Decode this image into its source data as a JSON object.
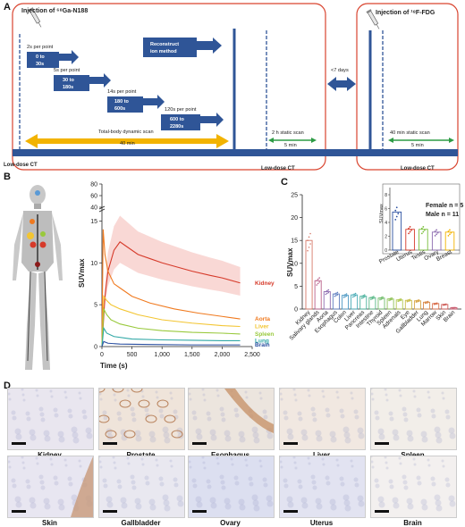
{
  "panel_labels": {
    "a": "A",
    "b": "B",
    "c": "C",
    "d": "D"
  },
  "timeline": {
    "inj1": "Injection of ⁶⁸Ga-N188",
    "inj2": "Injection of ¹⁸F-FDG",
    "recon1": "Reconstruct",
    "recon2": "ion method",
    "s1a": "2s per point",
    "s1b": "0 to",
    "s1c": "30s",
    "s2a": "5s per point",
    "s2b": "30 to",
    "s2c": "180s",
    "s3a": "14s per point",
    "s3b": "180 to",
    "s3c": "600s",
    "s4a": "120s per point",
    "s4b": "600 to",
    "s4c": "2280s",
    "dyn": "Total-body dynamic scan",
    "dyn_time": "40 min",
    "static1": "2 h static scan",
    "static1_time": "5 min",
    "gap": "<7 days",
    "static2": "40 min static scan",
    "static2_time": "5 min",
    "ct1": "Low-dose CT",
    "ct2": "Low-dose CT",
    "ct3": "Low-dose CT",
    "colors": {
      "box": "#d9442f",
      "bar": "#2f5597",
      "arrow_yellow": "#f2b300",
      "arrow_green": "#2d9b45"
    }
  },
  "chart_data": [
    {
      "type": "line",
      "ylabel": "SUVmax",
      "xlabel": "Time (s)",
      "xlim": [
        0,
        2500
      ],
      "x_ticks": [
        "0",
        "500",
        "1,000",
        "1,500",
        "2,000",
        "2,500"
      ],
      "y_ticks_lower": [
        "0",
        "5",
        "10",
        "15"
      ],
      "y_ticks_upper": [
        "40",
        "60",
        "80"
      ],
      "series": [
        {
          "name": "Kidney",
          "color": "#d63a2a",
          "x": [
            0,
            50,
            100,
            200,
            300,
            400,
            600,
            800,
            1000,
            1200,
            1500,
            1800,
            2000,
            2300
          ],
          "y": [
            0,
            6,
            9,
            11.5,
            12.5,
            12,
            11,
            10.5,
            10,
            9.6,
            9.0,
            8.5,
            8.2,
            7.6
          ]
        },
        {
          "name": "Aorta",
          "color": "#f07a1f",
          "x": [
            0,
            20,
            50,
            100,
            200,
            300,
            500,
            800,
            1200,
            1600,
            2000,
            2300
          ],
          "y": [
            0,
            14,
            11,
            9,
            7.5,
            7,
            6,
            5.2,
            4.5,
            4,
            3.6,
            3.3
          ]
        },
        {
          "name": "Liver",
          "color": "#f3c531",
          "x": [
            0,
            30,
            80,
            150,
            300,
            600,
            1000,
            1500,
            2000,
            2300
          ],
          "y": [
            0,
            6,
            5.5,
            5,
            4.5,
            3.8,
            3.2,
            2.8,
            2.5,
            2.4
          ]
        },
        {
          "name": "Spleen",
          "color": "#99c93c",
          "x": [
            0,
            30,
            80,
            150,
            300,
            600,
            1000,
            1500,
            2000,
            2300
          ],
          "y": [
            0,
            4.5,
            3.8,
            3.2,
            2.7,
            2.2,
            1.9,
            1.7,
            1.6,
            1.5
          ]
        },
        {
          "name": "Lung",
          "color": "#30a8a6",
          "x": [
            0,
            30,
            80,
            200,
            500,
            1000,
            1500,
            2000,
            2300
          ],
          "y": [
            0,
            2.2,
            1.6,
            1.2,
            0.9,
            0.8,
            0.75,
            0.7,
            0.7
          ]
        },
        {
          "name": "Brain",
          "color": "#2a4fa0",
          "x": [
            0,
            30,
            100,
            300,
            800,
            1500,
            2300
          ],
          "y": [
            0,
            0.6,
            0.4,
            0.3,
            0.25,
            0.2,
            0.2
          ]
        }
      ]
    },
    {
      "type": "bar",
      "ylabel": "SUVmax",
      "ylim": [
        0,
        25
      ],
      "y_ticks": [
        "0",
        "5",
        "10",
        "15",
        "20",
        "25"
      ],
      "categories": [
        "Kidney",
        "Salivary glands",
        "Aorta",
        "Esophagus",
        "Colon",
        "Liver",
        "Pancreas",
        "Intestine",
        "Thyroid",
        "Spleen",
        "Adrenals",
        "Eye",
        "Gallbladder",
        "Lung",
        "Marrow",
        "Skin",
        "Brain"
      ],
      "values": [
        15,
        6.2,
        3.8,
        3.3,
        3.0,
        3.1,
        2.8,
        2.5,
        2.4,
        2.2,
        2.0,
        1.9,
        1.8,
        1.5,
        1.2,
        1.0,
        0.3
      ],
      "colors": [
        "#d67a6a",
        "#b8608a",
        "#8d6db0",
        "#5f7fc0",
        "#4f9ac4",
        "#46aab5",
        "#4ab29d",
        "#58b886",
        "#72bd6c",
        "#90c258",
        "#b1c74f",
        "#c9bc4a",
        "#d7a548",
        "#d98a4a",
        "#d9704d",
        "#cf5f5a",
        "#c95a6e"
      ]
    },
    {
      "type": "bar",
      "ylabel": "SUVmax",
      "ylim": [
        0,
        8
      ],
      "y_ticks": [
        "0",
        "2",
        "4",
        "6",
        "8"
      ],
      "categories": [
        "Prostate",
        "Uterus",
        "Testis",
        "Ovary",
        "Breast"
      ],
      "values": [
        5.5,
        3.0,
        3.0,
        2.6,
        2.6
      ],
      "colors": [
        "#2a4fa0",
        "#d63a2a",
        "#7bbf3c",
        "#8d6db0",
        "#f2b300"
      ],
      "legend_line1": "Female n = 5",
      "legend_line2": "Male   n = 11"
    }
  ],
  "panel_b": {
    "image_label": "PET MIP"
  },
  "histology": [
    {
      "label": "Kidney"
    },
    {
      "label": "Prostate"
    },
    {
      "label": "Esophagus"
    },
    {
      "label": "Liver"
    },
    {
      "label": "Spleen"
    },
    {
      "label": "Skin"
    },
    {
      "label": "Gallbladder"
    },
    {
      "label": "Ovary"
    },
    {
      "label": "Uterus"
    },
    {
      "label": "Brain"
    }
  ]
}
